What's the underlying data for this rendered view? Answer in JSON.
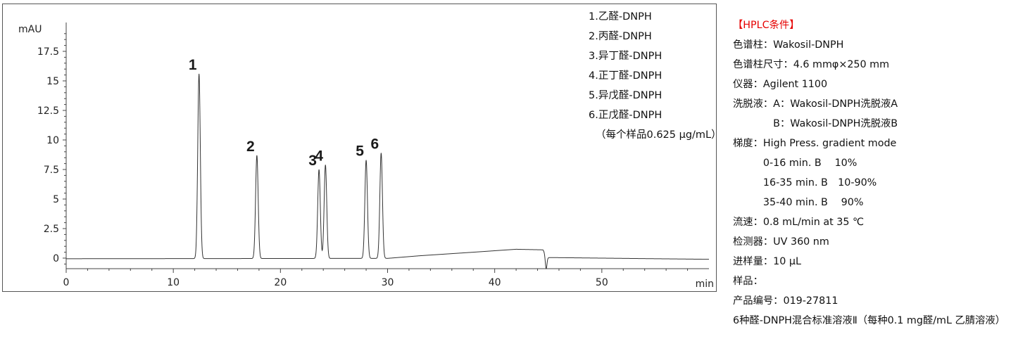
{
  "chart_data": {
    "type": "line",
    "xlabel": "min",
    "ylabel": "mAU",
    "xlim": [
      0,
      60
    ],
    "ylim": [
      -1.8,
      21.0
    ],
    "x_ticks": [
      "0",
      "10",
      "20",
      "30",
      "40",
      "50"
    ],
    "y_ticks": [
      "0",
      "2.5",
      "5",
      "7.5",
      "10",
      "12.5",
      "15",
      "17.5"
    ],
    "grid": false,
    "legend": [
      "1.乙醛-DNPH",
      "2.丙醛-DNPH",
      "3.异丁醛-DNPH",
      "4.正丁醛-DNPH",
      "5.异戊醛-DNPH",
      "6.正戊醛-DNPH",
      "（每个样品0.625 µg/mL）"
    ],
    "legend_position": "top-right",
    "peaks": [
      {
        "label": "1",
        "time": 12.4,
        "height": 15.6
      },
      {
        "label": "2",
        "time": 17.8,
        "height": 8.7
      },
      {
        "label": "3",
        "time": 23.6,
        "height": 7.5
      },
      {
        "label": "4",
        "time": 24.2,
        "height": 7.9
      },
      {
        "label": "5",
        "time": 28.0,
        "height": 8.3
      },
      {
        "label": "6",
        "time": 29.4,
        "height": 8.9
      }
    ],
    "baseline": [
      [
        0,
        -0.05
      ],
      [
        30,
        -0.02
      ],
      [
        33,
        0.2
      ],
      [
        38,
        0.5
      ],
      [
        42,
        0.75
      ],
      [
        44.5,
        0.7
      ],
      [
        45,
        0.05
      ],
      [
        50,
        0.0
      ],
      [
        60,
        -0.1
      ]
    ],
    "dip": {
      "time": 44.8,
      "depth": -1.2
    }
  },
  "conditions": {
    "title": "【HPLC条件】",
    "lines": [
      "色谱柱：Wakosil-DNPH",
      "色谱柱尺寸：4.6 mmφ×250 mm",
      "仪器：Agilent 1100",
      "洗脱液：A：Wakosil-DNPH洗脱液A",
      "　　　　B：Wakosil-DNPH洗脱液B",
      "梯度：High Press. gradient mode",
      "　　　0-16 min. B　  10%",
      "　　　16-35 min. B　10-90%",
      "　　　35-40 min. B　 90%",
      "流速：0.8 mL/min at 35 ℃",
      "检测器：UV 360 nm",
      "进样量：10 µL",
      "样品：",
      "产品编号：019-27811",
      "6种醛-DNPH混合标准溶液Ⅱ（每种0.1 mg醛/mL 乙腈溶液）"
    ]
  }
}
